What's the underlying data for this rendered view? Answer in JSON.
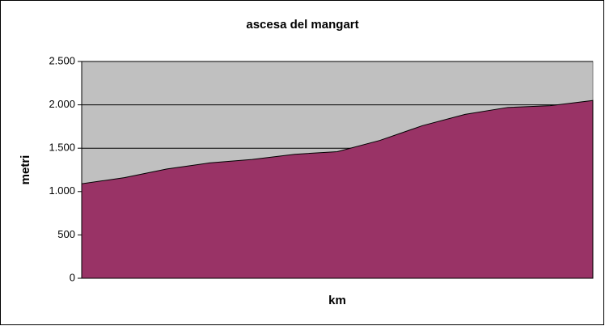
{
  "chart_data": {
    "type": "area",
    "title": "ascesa del mangart",
    "y_label": "metri",
    "x_label": "km",
    "categories": [
      null,
      null,
      null,
      null,
      null,
      null,
      null,
      null,
      null,
      null,
      null,
      null,
      null
    ],
    "values": [
      1090,
      1160,
      1260,
      1330,
      1370,
      1430,
      1460,
      1590,
      1760,
      1890,
      1970,
      1990,
      2050
    ],
    "color": "#993366",
    "plot_background": "#c0c0c0",
    "ylim": [
      0,
      2500
    ],
    "yticks": [
      0,
      500,
      {
        "value": 1000,
        "label": "1.000"
      },
      {
        "value": 1500,
        "label": "1.500"
      },
      {
        "value": 2000,
        "label": "2.000"
      },
      {
        "value": 2500,
        "label": "2.500"
      }
    ],
    "grid": true
  }
}
